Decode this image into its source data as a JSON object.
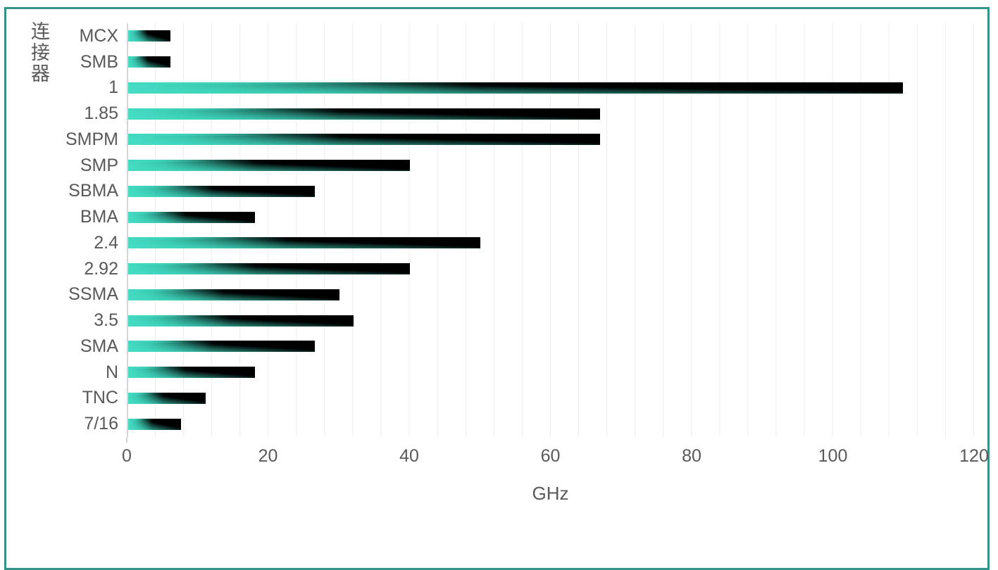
{
  "frame": {
    "border_color": "#35948A"
  },
  "colors": {
    "bar_teal": "#45DCC3",
    "bar_black": "#000000",
    "text_gray": "#595959",
    "gridline": "#ECECEC",
    "axis_line": "#D6D6D6"
  },
  "chart_data": {
    "type": "bar",
    "orientation": "horizontal",
    "title": "",
    "xlabel": "GHz",
    "ylabel": "连接器",
    "categories": [
      "MCX",
      "SMB",
      "1",
      "1.85",
      "SMPM",
      "SMP",
      "SBMA",
      "BMA",
      "2.4",
      "2.92",
      "SSMA",
      "3.5",
      "SMA",
      "N",
      "TNC",
      "7/16"
    ],
    "values": [
      6,
      6,
      110,
      67,
      67,
      40,
      26.5,
      18,
      50,
      40,
      30,
      32,
      26.5,
      18,
      11,
      7.5
    ],
    "xlim": [
      0,
      120
    ],
    "x_ticks": [
      0,
      20,
      40,
      60,
      80,
      100,
      120
    ],
    "minor_gridline_step_ghz": 4,
    "grid": true,
    "legend_position": "none",
    "bar_fill": "linear gradient teal to black, left to right"
  }
}
